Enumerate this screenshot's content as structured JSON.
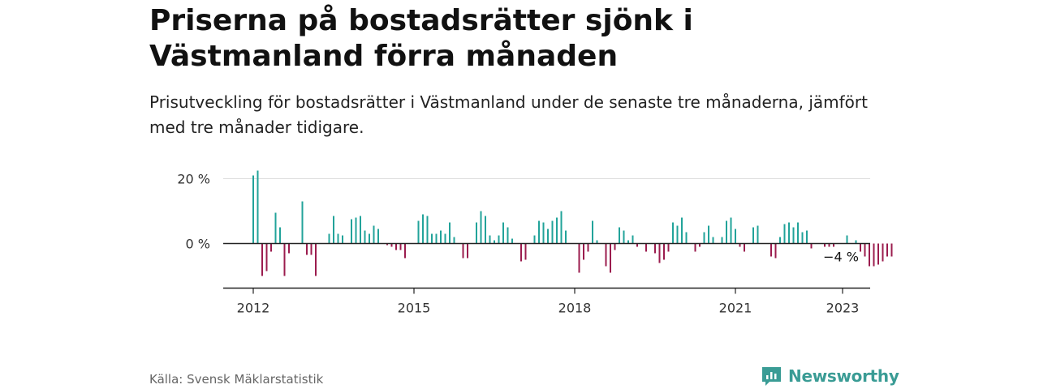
{
  "title": "Priserna på bostadsrätter sjönk i Västmanland förra månaden",
  "subtitle": "Prisutveckling för bostadsrätter i Västmanland under de senaste tre månaderna, jämfört med tre månader tidigare.",
  "source": "Källa: Svensk Mäklarstatistik",
  "brand": {
    "name": "Newsworthy",
    "icon": "newsworthy-logo-icon",
    "color": "#3a9c95"
  },
  "colors": {
    "positive": "#22a39a",
    "negative": "#9b1c4e",
    "baseline": "#222222",
    "grid": "#dddddd"
  },
  "chart_data": {
    "type": "bar",
    "x_start": "2012-01",
    "frequency": "monthly",
    "y_unit": "%",
    "ylim": [
      -15,
      25
    ],
    "yticks": [
      {
        "value": 0,
        "label": "0 %"
      },
      {
        "value": 20,
        "label": "20 %"
      }
    ],
    "xticks": [
      {
        "date": "2012-01",
        "label": "2012"
      },
      {
        "date": "2015-01",
        "label": "2015"
      },
      {
        "date": "2018-01",
        "label": "2018"
      },
      {
        "date": "2021-01",
        "label": "2021"
      },
      {
        "date": "2023-01",
        "label": "2023"
      }
    ],
    "grid": true,
    "annotation": {
      "date": "2023-01",
      "label": "−4 %"
    },
    "values": [
      21,
      22.5,
      -10,
      -8.5,
      -2.5,
      9.5,
      5,
      -10,
      -3,
      0,
      0,
      13,
      -3.5,
      -3.5,
      -10,
      0,
      0,
      3,
      8.5,
      3,
      2.5,
      0,
      7.5,
      8,
      8.5,
      4,
      3,
      5.5,
      4.5,
      0,
      -0.5,
      -1,
      -2,
      -2,
      -4.5,
      0,
      0,
      7,
      9,
      8.5,
      3,
      3,
      4,
      3,
      6.5,
      2,
      0,
      -4.5,
      -4.5,
      0,
      6.5,
      10,
      8.5,
      2.5,
      1,
      2.5,
      6.5,
      5,
      1.5,
      0,
      -5.5,
      -5,
      0,
      2.5,
      7,
      6.5,
      4.5,
      7,
      8,
      10,
      4,
      0,
      0,
      -9,
      -5,
      -2.5,
      7,
      1,
      0,
      -7,
      -9,
      -2,
      5,
      4,
      1,
      2.5,
      -1,
      0,
      -2.5,
      0,
      -3,
      -6,
      -5,
      -2.5,
      6.5,
      5.5,
      8,
      3.5,
      0,
      -2.5,
      -1,
      3.5,
      5.5,
      2,
      0,
      2,
      7,
      8,
      4.5,
      -1,
      -2.5,
      0,
      5,
      5.5,
      0,
      0,
      -4,
      -4.5,
      2,
      6,
      6.5,
      5,
      6.5,
      3.5,
      4,
      -1.5,
      0,
      0,
      -1,
      -1,
      -1,
      0,
      0,
      2.5,
      0,
      1,
      -2.5,
      -4,
      -7,
      -7,
      -6.5,
      -5.5,
      -4,
      -4
    ]
  }
}
